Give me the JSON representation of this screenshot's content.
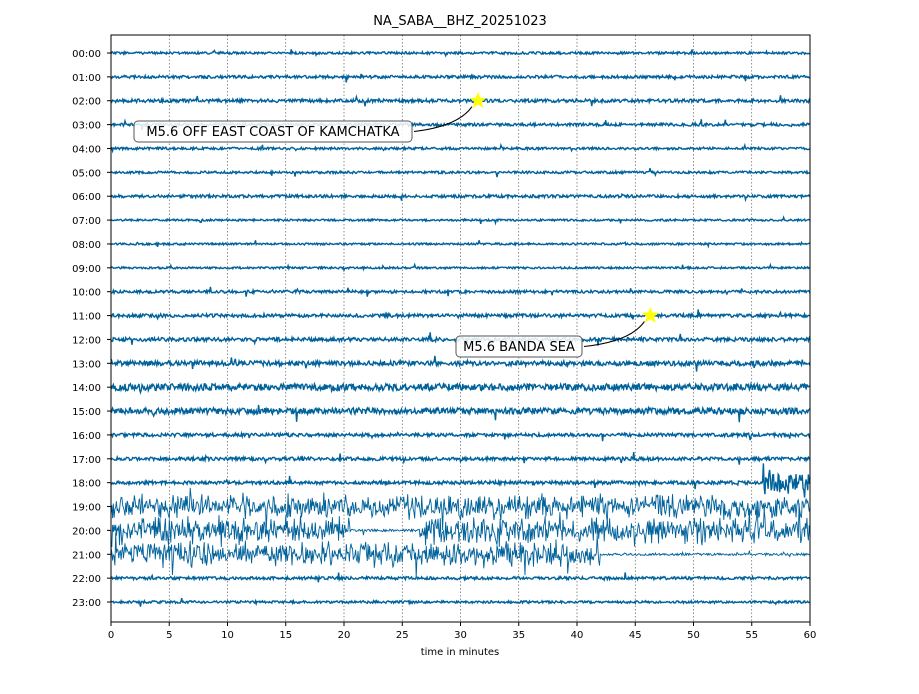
{
  "chart_data": {
    "type": "line",
    "title": "NA_SABA__BHZ_20251023",
    "xlabel": "time in minutes",
    "ylabel": "",
    "xlim": [
      0,
      60
    ],
    "xticks": [
      0,
      5,
      10,
      15,
      20,
      25,
      30,
      35,
      40,
      45,
      50,
      55,
      60
    ],
    "grid": "vertical dotted",
    "trace_color": "#00629b",
    "rows": [
      "00:00",
      "01:00",
      "02:00",
      "03:00",
      "04:00",
      "05:00",
      "06:00",
      "07:00",
      "08:00",
      "09:00",
      "10:00",
      "11:00",
      "12:00",
      "13:00",
      "14:00",
      "15:00",
      "16:00",
      "17:00",
      "18:00",
      "19:00",
      "20:00",
      "21:00",
      "22:00",
      "23:00"
    ],
    "noise_amplitude": [
      0.05,
      0.06,
      0.07,
      0.06,
      0.05,
      0.05,
      0.06,
      0.04,
      0.04,
      0.04,
      0.06,
      0.07,
      0.08,
      0.1,
      0.14,
      0.13,
      0.07,
      0.07,
      0.07,
      0.35,
      0.4,
      0.35,
      0.06,
      0.05
    ],
    "bursts": [
      {
        "row": 18,
        "start": 56,
        "end": 60,
        "amplitude": 0.35
      },
      {
        "row": 20,
        "start": 20.5,
        "end": 26.5,
        "amplitude": -1
      },
      {
        "row": 21,
        "start": 42,
        "end": 60,
        "amplitude": -1
      }
    ],
    "events": [
      {
        "label": "M5.6 OFF EAST COAST OF KAMCHATKA",
        "row": 2,
        "minute": 31.5,
        "marker_color": "#ffff00"
      },
      {
        "label": "M5.6 BANDA SEA",
        "row": 11,
        "minute": 46.3,
        "marker_color": "#ffff00"
      }
    ]
  }
}
